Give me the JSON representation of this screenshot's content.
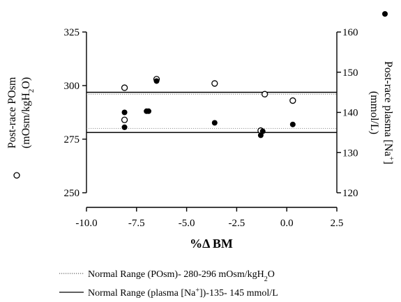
{
  "chart_data": {
    "type": "scatter",
    "x_axis": {
      "label": "%Δ BM",
      "ticks": [
        -10.0,
        -7.5,
        -5.0,
        -2.5,
        0.0,
        2.5
      ],
      "tick_labels": [
        "-10.0",
        "-7.5",
        "-5.0",
        "-2.5",
        "0.0",
        "2.5"
      ],
      "range": [
        -10.0,
        2.5
      ]
    },
    "y_left": {
      "label_line1": "Post-race POsm",
      "label_line2": "(mOsm/kgH",
      "label_sub": "2",
      "label_end": "O)",
      "ticks": [
        250,
        275,
        300,
        325
      ],
      "range": [
        250,
        325
      ]
    },
    "y_right": {
      "label_line1": "Post-race plasma [Na",
      "label_sup": "+",
      "label_line1_end": "]",
      "label_line2": "(mmol/L)",
      "ticks": [
        120,
        130,
        140,
        150,
        160
      ],
      "range": [
        120,
        160
      ]
    },
    "series": [
      {
        "marker": "open-circle",
        "axis": "left",
        "points": [
          {
            "x": -8.1,
            "y": 299
          },
          {
            "x": -8.1,
            "y": 284
          },
          {
            "x": -6.5,
            "y": 303
          },
          {
            "x": -3.6,
            "y": 301
          },
          {
            "x": -1.3,
            "y": 279
          },
          {
            "x": -1.1,
            "y": 296
          },
          {
            "x": 0.3,
            "y": 293
          }
        ]
      },
      {
        "marker": "filled-circle",
        "axis": "right",
        "points": [
          {
            "x": -8.1,
            "y": 140
          },
          {
            "x": -8.1,
            "y": 136.3
          },
          {
            "x": -7.0,
            "y": 140.3
          },
          {
            "x": -6.9,
            "y": 140.3
          },
          {
            "x": -6.5,
            "y": 147.8
          },
          {
            "x": -3.6,
            "y": 137.4
          },
          {
            "x": -1.3,
            "y": 134.3
          },
          {
            "x": -1.2,
            "y": 135.3
          },
          {
            "x": 0.3,
            "y": 137
          }
        ]
      }
    ],
    "reference_lines": [
      {
        "style": "dotted",
        "axis": "left",
        "values": [
          280,
          296
        ]
      },
      {
        "style": "solid",
        "axis": "right",
        "values": [
          135,
          145
        ]
      }
    ],
    "legend": [
      {
        "style": "dotted",
        "text_before": "Normal Range (POsm)- 280-296 mOsm/kgH",
        "sub": "2",
        "text_after": "O"
      },
      {
        "style": "solid",
        "text_before": "Normal Range (plasma [Na",
        "sup": "+",
        "text_after": "])-135- 145 mmol/L"
      }
    ]
  }
}
